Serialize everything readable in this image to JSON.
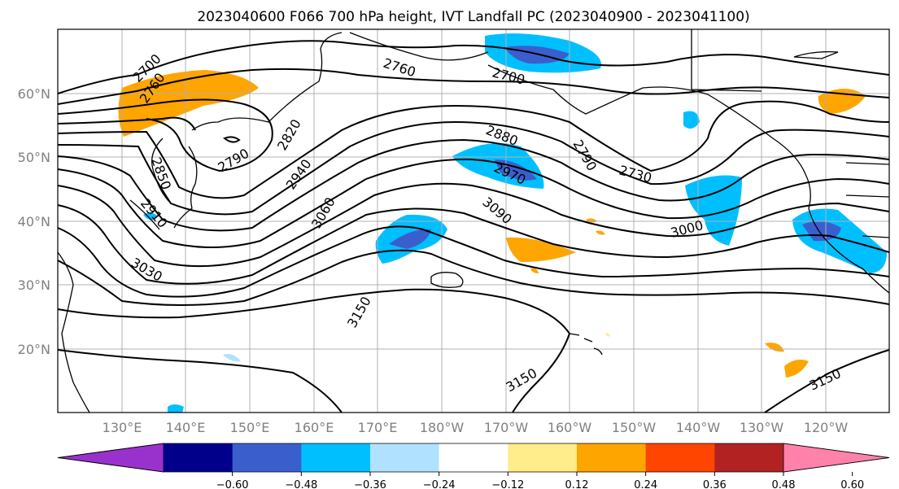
{
  "title": "2023040600 F066 700 hPa height, IVT Landfall PC (2023040900 - 2023041100)",
  "lat_labels": [
    "60°N",
    "50°N",
    "40°N",
    "30°N",
    "20°N"
  ],
  "lon_labels": [
    "130°E",
    "140°E",
    "150°E",
    "160°E",
    "170°E",
    "180°W",
    "170°W",
    "160°W",
    "150°W",
    "140°W",
    "130°W",
    "120°W"
  ],
  "contour_labels": [
    "2700",
    "2760",
    "2760",
    "2700",
    "2790",
    "2820",
    "2850",
    "2940",
    "2880",
    "2970",
    "2790",
    "2730",
    "2910",
    "3060",
    "3090",
    "3000",
    "3030",
    "3150",
    "3150",
    "3150"
  ],
  "colorbar": {
    "colors": [
      "#9932cc",
      "#00008b",
      "#3a5fcd",
      "#00bfff",
      "#b0e2ff",
      "#ffffff",
      "#ffec8b",
      "#ffa500",
      "#ff4500",
      "#b22222",
      "#ff82ab"
    ],
    "tick_labels": [
      "−0.60",
      "−0.48",
      "−0.36",
      "−0.24",
      "−0.12",
      "0.12",
      "0.24",
      "0.36",
      "0.48",
      "0.60"
    ]
  },
  "fill_colors": {
    "orange": "#ffa500",
    "lightblue": "#00bfff",
    "blue": "#3a5fcd",
    "paleblue": "#b0e2ff",
    "yellow": "#ffec8b"
  }
}
